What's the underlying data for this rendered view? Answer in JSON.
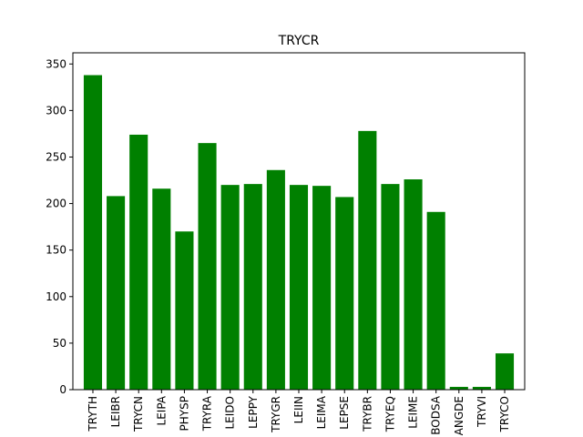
{
  "chart_data": {
    "type": "bar",
    "title": "TRYCR",
    "xlabel": "",
    "ylabel": "",
    "categories": [
      "TRYTH",
      "LEIBR",
      "TRYCN",
      "LEIPA",
      "PHYSP",
      "TRYRA",
      "LEIDO",
      "LEPPY",
      "TRYGR",
      "LEIIN",
      "LEIMA",
      "LEPSE",
      "TRYBR",
      "TRYEQ",
      "LEIME",
      "BODSA",
      "ANGDE",
      "TRYVI",
      "TRYCO"
    ],
    "values": [
      338,
      208,
      274,
      216,
      170,
      265,
      220,
      221,
      236,
      220,
      219,
      207,
      278,
      221,
      226,
      191,
      3,
      3,
      39
    ],
    "ylim": [
      0,
      362
    ],
    "yticks": [
      0,
      50,
      100,
      150,
      200,
      250,
      300,
      350
    ],
    "bar_color": "#008000",
    "grid": false,
    "legend": "none"
  }
}
